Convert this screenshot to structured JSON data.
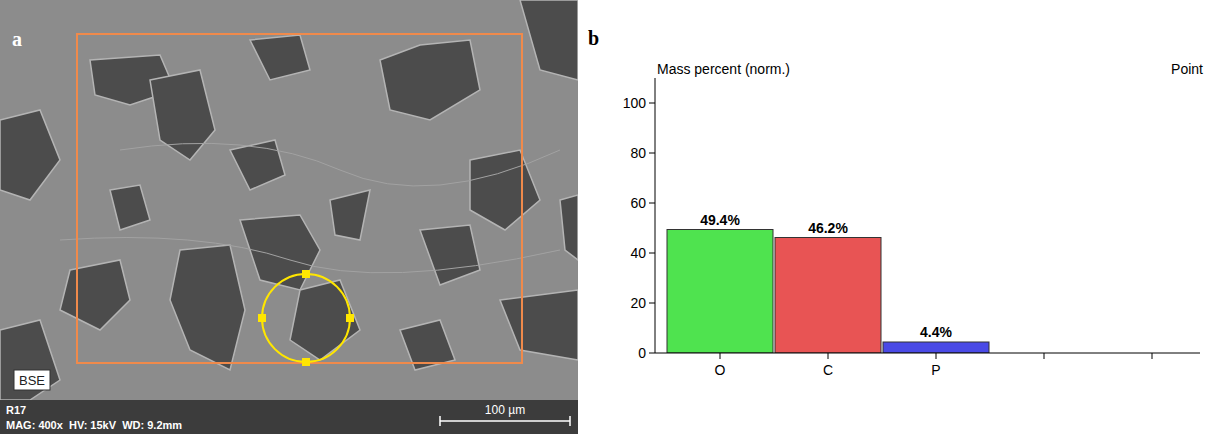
{
  "image_panel": {
    "label": "a",
    "detector": "BSE",
    "sample": "R17",
    "info": "MAG: 400x  HV: 15kV  WD: 9.2mm",
    "scale_bar": "100 µm"
  },
  "chart_data": {
    "type": "bar",
    "title": "Mass percent (norm.)",
    "annotations": [
      "b",
      "Point"
    ],
    "categories": [
      "O",
      "C",
      "P",
      null,
      null
    ],
    "values": [
      49.4,
      46.2,
      4.4,
      null,
      null
    ],
    "value_labels": [
      "49.4%",
      "46.2%",
      "4.4%",
      null,
      null
    ],
    "colors": [
      "#4fe34f",
      "#e85454",
      "#4a4ae6",
      null,
      null
    ],
    "ylim": [
      0,
      110
    ],
    "yticks": [
      0,
      20,
      40,
      60,
      80,
      100
    ],
    "grid": false,
    "data_labels": true
  }
}
